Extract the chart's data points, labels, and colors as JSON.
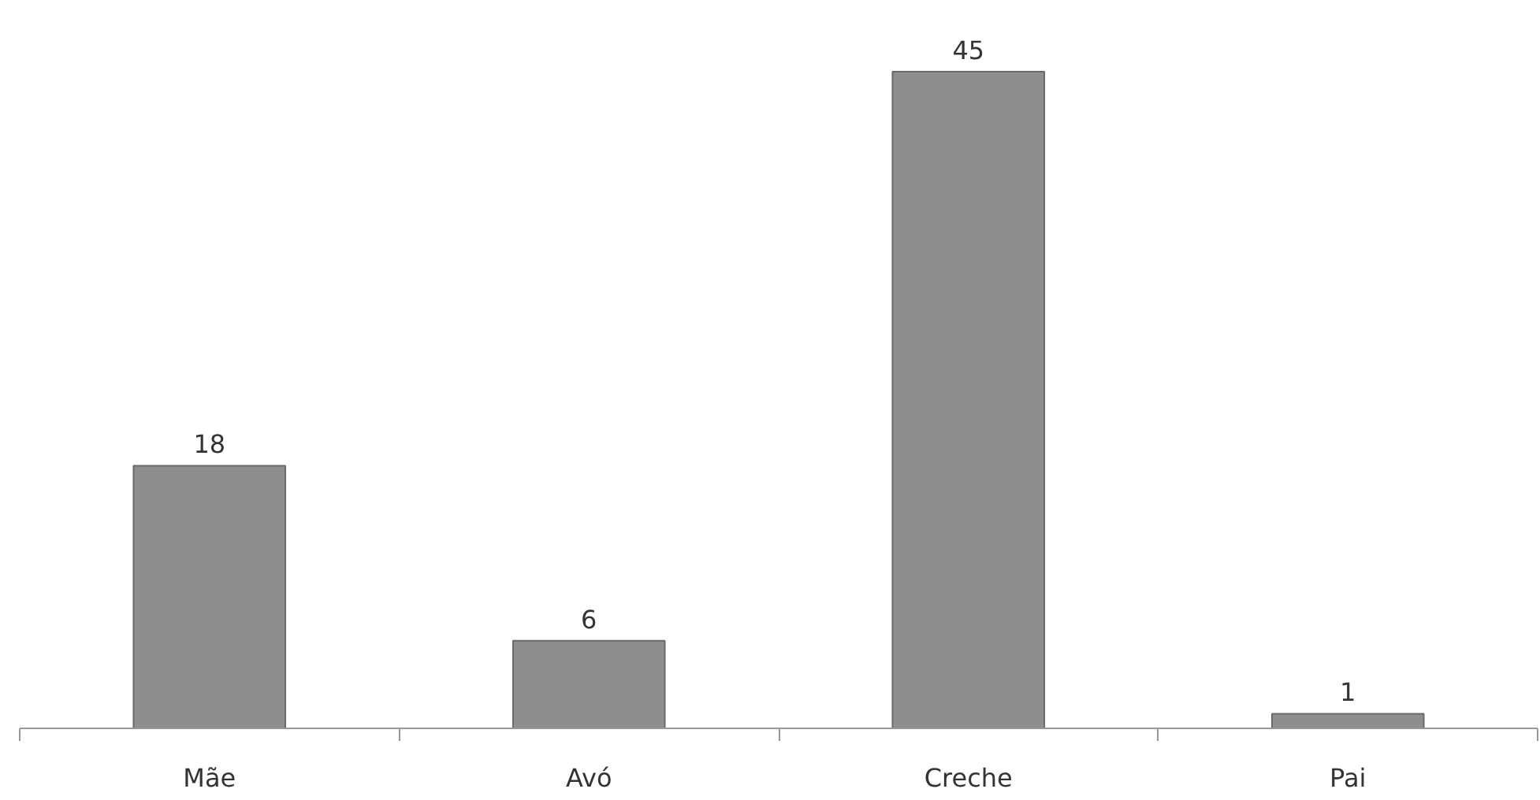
{
  "chart_data": {
    "type": "bar",
    "categories": [
      "Mãe",
      "Avó",
      "Creche",
      "Pai"
    ],
    "values": [
      18,
      6,
      45,
      1
    ],
    "color": "#8e8e8e",
    "data_labels": true
  }
}
